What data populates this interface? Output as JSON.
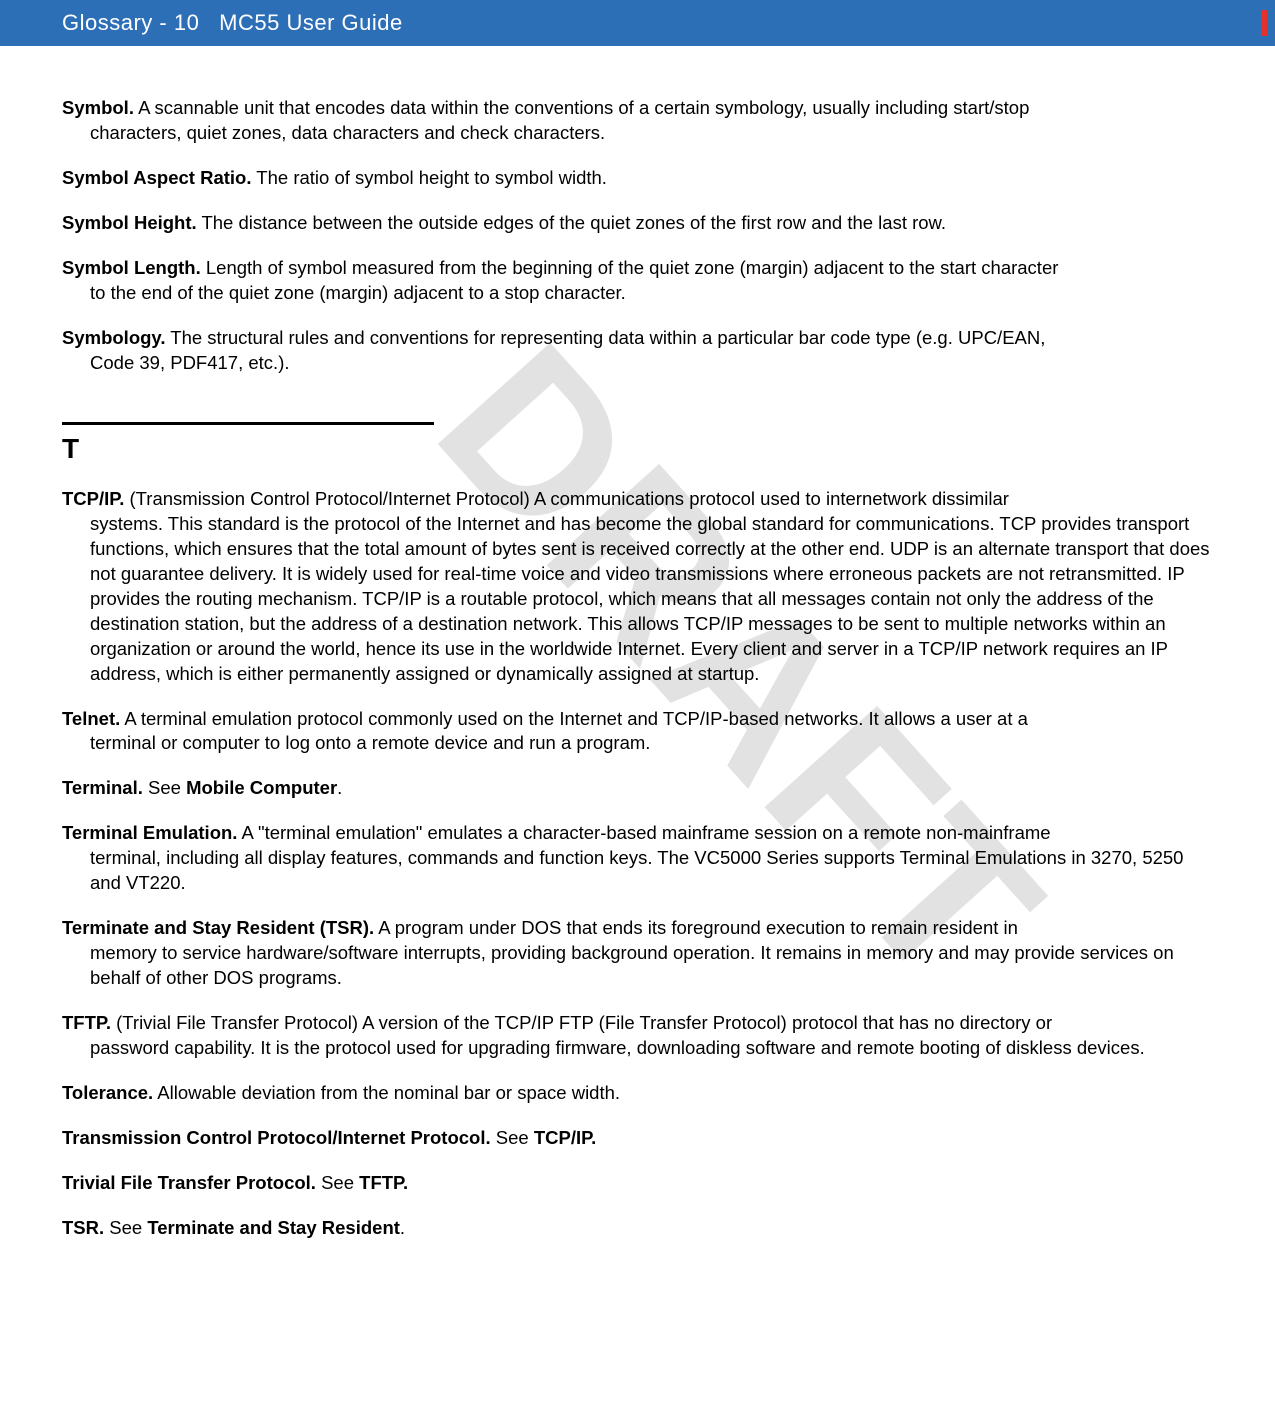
{
  "header": {
    "page_label": "Glossary - 10",
    "doc_title": "MC55 User Guide",
    "bar_color": "#2c6fb7",
    "mark_color": "#e4322b"
  },
  "watermark": "DRAFT",
  "watermark_color": "#d9d9d9",
  "entries_s": [
    {
      "term": "Symbol.",
      "first": " A scannable unit that encodes data within the conventions of a certain symbology, usually including start/stop",
      "rest": "characters, quiet zones, data characters and check characters."
    },
    {
      "term": "Symbol Aspect Ratio.",
      "first": " The ratio of symbol height to symbol width.",
      "rest": ""
    },
    {
      "term": "Symbol Height.",
      "first": " The distance between the outside edges of the quiet zones of the first row and the last row.",
      "rest": ""
    },
    {
      "term": "Symbol Length.",
      "first": " Length of symbol measured from the beginning of the quiet zone (margin) adjacent to the start character",
      "rest": "to the end of the quiet zone (margin) adjacent to a stop character."
    },
    {
      "term": "Symbology.",
      "first": " The structural rules and conventions for representing data within a particular bar code type (e.g. UPC/EAN,",
      "rest": "Code 39, PDF417, etc.)."
    }
  ],
  "section_t": "T",
  "entries_t": [
    {
      "term": "TCP/IP.",
      "first": " (Transmission Control Protocol/Internet Protocol) A communications protocol used to internetwork dissimilar",
      "rest": "systems. This standard is the protocol of the Internet and has become the global standard for communications. TCP provides transport functions, which ensures that the total amount of bytes sent is received correctly at the other end. UDP is an alternate transport that does not guarantee delivery. It is widely used for real-time voice and video transmissions where erroneous packets are not retransmitted. IP provides the routing mechanism. TCP/IP is a routable protocol, which means that all messages contain not only the address of the destination station, but the address of a destination network. This allows TCP/IP messages to be sent to multiple networks within an organization or around the world, hence its use in the worldwide Internet. Every client and server in a TCP/IP network requires an IP address, which is either permanently assigned or dynamically assigned at startup."
    },
    {
      "term": "Telnet.",
      "first": " A terminal emulation protocol commonly used on the Internet and TCP/IP-based networks. It allows a user at a",
      "rest": "terminal or computer to log onto a remote device and run a program."
    },
    {
      "term": "Terminal.",
      "first": " See ",
      "xref": "Mobile Computer",
      "tail": ".",
      "rest": ""
    },
    {
      "term": "Terminal Emulation.",
      "first": " A \"terminal emulation\" emulates a character-based mainframe session on a remote non-mainframe",
      "rest": "terminal, including all display features, commands and function keys. The VC5000 Series supports Terminal Emulations in 3270, 5250 and VT220."
    },
    {
      "term": "Terminate and Stay Resident (TSR).",
      "first": " A program under DOS that ends its foreground execution to remain resident in",
      "rest": "memory to service hardware/software interrupts, providing background operation. It remains in memory and may provide services on behalf of other DOS programs."
    },
    {
      "term": "TFTP.",
      "first": " (Trivial File Transfer Protocol) A version of the TCP/IP FTP (File Transfer Protocol) protocol that has no directory or",
      "rest": "password capability. It is the protocol used for upgrading firmware, downloading software and remote booting of diskless devices."
    },
    {
      "term": "Tolerance.",
      "first": " Allowable deviation from the nominal bar or space width.",
      "rest": ""
    },
    {
      "term": "Transmission Control Protocol/Internet Protocol.",
      "first": " See ",
      "xref": "TCP/IP.",
      "tail": "",
      "rest": ""
    },
    {
      "term": "Trivial File Transfer Protocol.",
      "first": " See ",
      "xref": "TFTP.",
      "tail": "",
      "rest": ""
    },
    {
      "term": "TSR.",
      "first": " See ",
      "xref": "Terminate and Stay Resident",
      "tail": ".",
      "rest": ""
    }
  ]
}
